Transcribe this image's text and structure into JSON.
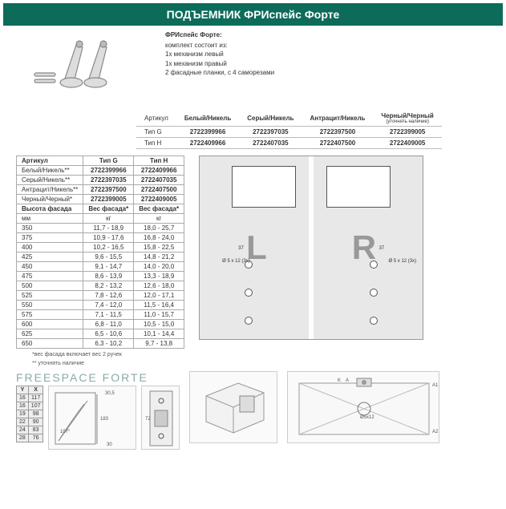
{
  "title": "ПОДЪЕМНИК ФРИспейс Форте",
  "desc": {
    "h": "ФРИспейс Форте:",
    "lines": [
      "комплект состоит из:",
      "1х механизм левый",
      "1х механизм правый",
      "2 фасадные планки, с 4 саморезами"
    ]
  },
  "t1": {
    "headers": [
      "Артикул",
      "Белый/Никель",
      "Серый/Никель",
      "Антрацит/Никель",
      "Черный/Черный"
    ],
    "subnote": "(уточнять наличие)",
    "rows": [
      {
        "label": "Тип G",
        "cells": [
          "2722399966",
          "2722397035",
          "2722397500",
          "2722399005"
        ]
      },
      {
        "label": "Тип H",
        "cells": [
          "2722409966",
          "2722407035",
          "2722407500",
          "2722409005"
        ]
      }
    ]
  },
  "t2": {
    "h1": "Артикул",
    "h2": "Тип G",
    "h3": "Тип H",
    "colors": [
      {
        "n": "Белый/Никель**",
        "g": "2722399966",
        "h": "2722409966"
      },
      {
        "n": "Серый/Никель**",
        "g": "2722397035",
        "h": "2722407035"
      },
      {
        "n": "Антрацит/Никель**",
        "g": "2722397500",
        "h": "2722407500"
      },
      {
        "n": "Черный/Черный*",
        "g": "2722399005",
        "h": "2722409005"
      }
    ],
    "sh1": "Высота фасада",
    "sh2": "Вес фасада*",
    "sh3": "Вес фасада*",
    "su1": "мм",
    "su2": "кг",
    "su3": "кг",
    "data": [
      {
        "a": "350",
        "b": "11,7 - 18,9",
        "c": "18,0 - 25,7"
      },
      {
        "a": "375",
        "b": "10,9 - 17,6",
        "c": "16,8 - 24,0"
      },
      {
        "a": "400",
        "b": "10,2 - 16,5",
        "c": "15,8 - 22,5"
      },
      {
        "a": "425",
        "b": "9,6 - 15,5",
        "c": "14,8 - 21,2"
      },
      {
        "a": "450",
        "b": "9,1 - 14,7",
        "c": "14,0 - 20,0"
      },
      {
        "a": "475",
        "b": "8,6 - 13,9",
        "c": "13,3 - 18,9"
      },
      {
        "a": "500",
        "b": "8,2 - 13,2",
        "c": "12,6 - 18,0"
      },
      {
        "a": "525",
        "b": "7,8 - 12,6",
        "c": "12,0 - 17,1"
      },
      {
        "a": "550",
        "b": "7,4 - 12,0",
        "c": "11,5 - 16,4"
      },
      {
        "a": "575",
        "b": "7,1 - 11,5",
        "c": "11,0 - 15,7"
      },
      {
        "a": "600",
        "b": "6,8 - 11,0",
        "c": "10,5 - 15,0"
      },
      {
        "a": "625",
        "b": "6,5 - 10,6",
        "c": "10,1 - 14,4"
      },
      {
        "a": "650",
        "b": "6,3 - 10,2",
        "c": "9,7 - 13,8"
      }
    ]
  },
  "notes": [
    "*вес фасада включает вес 2 ручек",
    "** уточнять наличие"
  ],
  "lr": {
    "L": "L",
    "R": "R",
    "dim1": "37",
    "dim2": "37",
    "hole": "Ø 5 x 12 (3x)"
  },
  "ff": {
    "title": "FREESPACE FORTE",
    "yh": "Y",
    "xh": "X",
    "yx": [
      {
        "y": "16",
        "x": "117"
      },
      {
        "y": "16",
        "x": "107"
      },
      {
        "y": "19",
        "x": "98"
      },
      {
        "y": "22",
        "x": "90"
      },
      {
        "y": "24",
        "x": "83"
      },
      {
        "y": "28",
        "x": "76"
      }
    ],
    "dims": {
      "a": "30,5",
      "b": "183",
      "c": "107°",
      "d": "30",
      "e": "72",
      "f": "Ø5x12",
      "g": "K",
      "h": "A",
      "i": "A1",
      "j": "A2"
    }
  }
}
